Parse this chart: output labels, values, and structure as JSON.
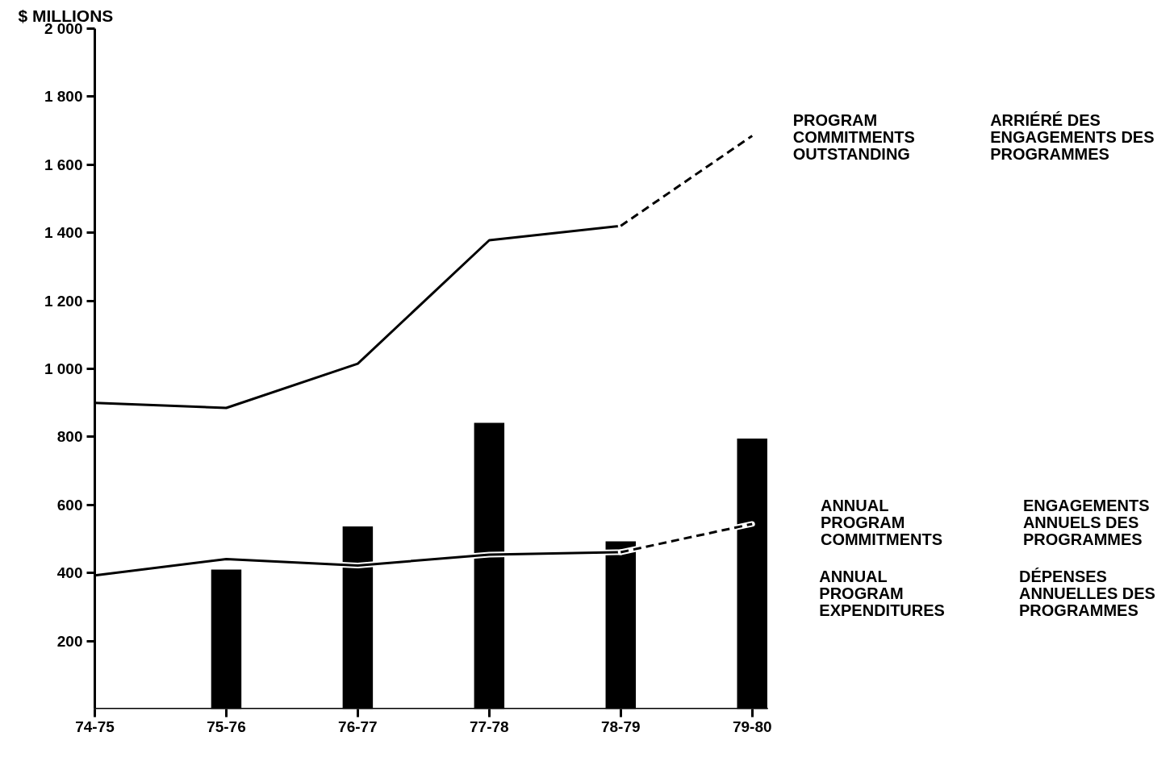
{
  "chart_data": {
    "type": "line",
    "ylabel": "$ MILLIONS",
    "categories": [
      "74-75",
      "75-76",
      "76-77",
      "77-78",
      "78-79",
      "79-80"
    ],
    "series": [
      {
        "type": "bar",
        "color": "#000000",
        "values": [
          null,
          410,
          537,
          841,
          493,
          795
        ]
      },
      {
        "color": "#000000",
        "line_style": "solid",
        "values": [
          900,
          885,
          1015,
          1378,
          1420,
          null
        ]
      },
      {
        "color": "#000000",
        "line_style": "dashed",
        "values": [
          null,
          null,
          null,
          null,
          1420,
          1685
        ]
      },
      {
        "color": "#000000",
        "line_style": "solid",
        "values": [
          393,
          441,
          422,
          454,
          461,
          null
        ]
      },
      {
        "color": "#000000",
        "line_style": "dashed",
        "values": [
          null,
          null,
          null,
          null,
          461,
          544
        ]
      }
    ],
    "ylim": [
      0,
      2000
    ],
    "yticks": [
      {
        "value": 200,
        "label": "200"
      },
      {
        "value": 400,
        "label": "400"
      },
      {
        "value": 600,
        "label": "600"
      },
      {
        "value": 800,
        "label": "800"
      },
      {
        "value": 1000,
        "label": "1 000"
      },
      {
        "value": 1200,
        "label": "1 200"
      },
      {
        "value": 1400,
        "label": "1 400"
      },
      {
        "value": 1600,
        "label": "1 600"
      },
      {
        "value": 1800,
        "label": "1 800"
      },
      {
        "value": 2000,
        "label": "2 000"
      }
    ],
    "grid": false,
    "annotations": [
      "PROGRAM\nCOMMITMENTS\nOUTSTANDING",
      "ARRIÉRÉ DES\nENGAGEMENTS DES\nPROGRAMMES",
      "ANNUAL\nPROGRAM\nCOMMITMENTS",
      "ENGAGEMENTS\nANNUELS DES\nPROGRAMMES",
      "ANNUAL\nPROGRAM\nEXPENDITURES",
      "DÉPENSES\nANNUELLES DES\nPROGRAMMES"
    ]
  }
}
